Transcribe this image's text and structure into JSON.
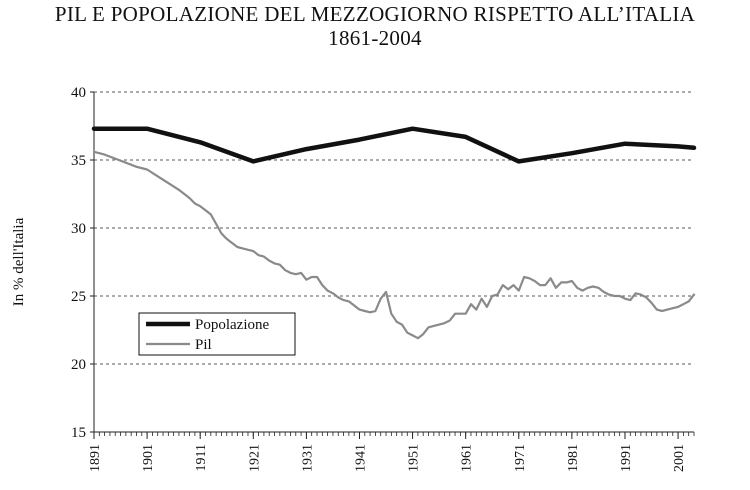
{
  "chart_data": {
    "type": "line",
    "title": "PIL E POPOLAZIONE DEL MEZZOGIORNO RISPETTO ALL’ITALIA",
    "subtitle": "1861-2004",
    "ylabel": "In % dell'Italia",
    "xlabel": "",
    "xlim": [
      1891,
      2004
    ],
    "ylim": [
      15,
      40
    ],
    "yticks": [
      "15",
      "20",
      "25",
      "30",
      "35",
      "40"
    ],
    "xticks": [
      "1891",
      "1901",
      "1911",
      "1921",
      "1931",
      "1941",
      "1951",
      "1961",
      "1971",
      "1981",
      "1991",
      "2001"
    ],
    "grid": "horizontal dashed",
    "legend_position": "lower-left",
    "series": [
      {
        "name": "Popolazione",
        "color": "#111111",
        "x": [
          1891,
          1901,
          1911,
          1921,
          1931,
          1941,
          1951,
          1961,
          1971,
          1981,
          1991,
          2001,
          2004
        ],
        "y": [
          37.3,
          37.3,
          36.3,
          34.9,
          35.8,
          36.5,
          37.3,
          36.7,
          34.9,
          35.5,
          36.2,
          36.0,
          35.9
        ]
      },
      {
        "name": "Pil",
        "color": "#8a8a8a",
        "x": [
          1891,
          1893,
          1895,
          1897,
          1899,
          1901,
          1903,
          1905,
          1907,
          1909,
          1910,
          1911,
          1912,
          1913,
          1914,
          1915,
          1916,
          1917,
          1918,
          1919,
          1920,
          1921,
          1922,
          1923,
          1924,
          1925,
          1926,
          1927,
          1928,
          1929,
          1930,
          1931,
          1932,
          1933,
          1934,
          1935,
          1936,
          1937,
          1938,
          1939,
          1940,
          1941,
          1942,
          1943,
          1944,
          1945,
          1946,
          1947,
          1948,
          1949,
          1950,
          1951,
          1952,
          1953,
          1954,
          1955,
          1956,
          1957,
          1958,
          1959,
          1960,
          1961,
          1962,
          1963,
          1964,
          1965,
          1966,
          1967,
          1968,
          1969,
          1970,
          1971,
          1972,
          1973,
          1974,
          1975,
          1976,
          1977,
          1978,
          1979,
          1980,
          1981,
          1982,
          1983,
          1984,
          1985,
          1986,
          1987,
          1988,
          1989,
          1990,
          1991,
          1992,
          1993,
          1994,
          1995,
          1996,
          1997,
          1998,
          1999,
          2000,
          2001,
          2002,
          2003,
          2004
        ],
        "y": [
          35.6,
          35.4,
          35.1,
          34.8,
          34.5,
          34.3,
          33.8,
          33.3,
          32.8,
          32.2,
          31.8,
          31.6,
          31.3,
          31.0,
          30.3,
          29.6,
          29.2,
          28.9,
          28.6,
          28.5,
          28.4,
          28.3,
          28.0,
          27.9,
          27.6,
          27.4,
          27.3,
          26.9,
          26.7,
          26.6,
          26.7,
          26.2,
          26.4,
          26.4,
          25.8,
          25.4,
          25.2,
          24.9,
          24.7,
          24.6,
          24.3,
          24.0,
          23.9,
          23.8,
          23.9,
          24.8,
          25.3,
          23.7,
          23.1,
          22.9,
          22.3,
          22.1,
          21.9,
          22.2,
          22.7,
          22.8,
          22.9,
          23.0,
          23.2,
          23.7,
          23.7,
          23.7,
          24.4,
          24.0,
          24.8,
          24.2,
          25.0,
          25.1,
          25.8,
          25.5,
          25.8,
          25.4,
          26.4,
          26.3,
          26.1,
          25.8,
          25.8,
          26.3,
          25.6,
          26.0,
          26.0,
          26.1,
          25.6,
          25.4,
          25.6,
          25.7,
          25.6,
          25.3,
          25.1,
          25.0,
          25.0,
          24.8,
          24.7,
          25.2,
          25.1,
          24.9,
          24.5,
          24.0,
          23.9,
          24.0,
          24.1,
          24.2,
          24.4,
          24.6,
          25.1
        ]
      }
    ]
  }
}
